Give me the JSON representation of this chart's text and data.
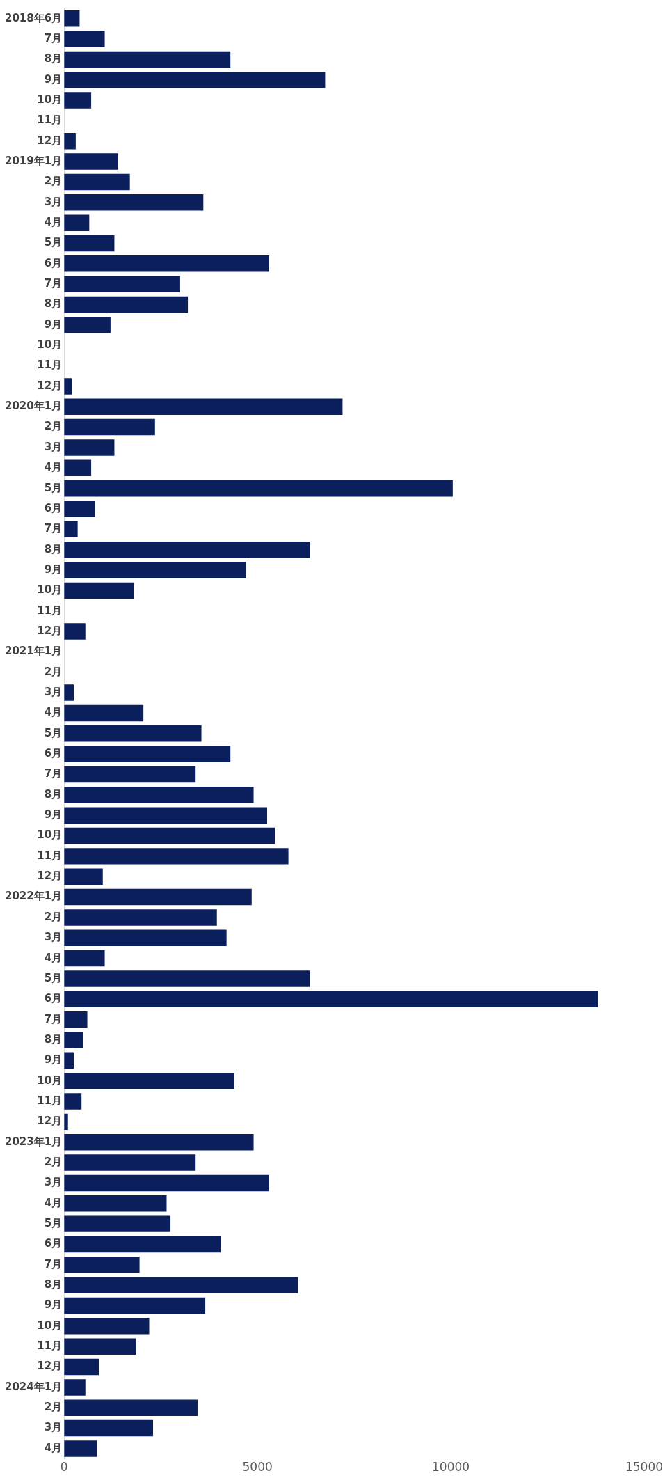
{
  "chart_data": {
    "type": "bar",
    "orientation": "horizontal",
    "categories": [
      "2018年6月",
      "7月",
      "8月",
      "9月",
      "10月",
      "11月",
      "12月",
      "2019年1月",
      "2月",
      "3月",
      "4月",
      "5月",
      "6月",
      "7月",
      "8月",
      "9月",
      "10月",
      "11月",
      "12月",
      "2020年1月",
      "2月",
      "3月",
      "4月",
      "5月",
      "6月",
      "7月",
      "8月",
      "9月",
      "10月",
      "11月",
      "12月",
      "2021年1月",
      "2月",
      "3月",
      "4月",
      "5月",
      "6月",
      "7月",
      "8月",
      "9月",
      "10月",
      "11月",
      "12月",
      "2022年1月",
      "2月",
      "3月",
      "4月",
      "5月",
      "6月",
      "7月",
      "8月",
      "9月",
      "10月",
      "11月",
      "12月",
      "2023年1月",
      "2月",
      "3月",
      "4月",
      "5月",
      "6月",
      "7月",
      "8月",
      "9月",
      "10月",
      "11月",
      "12月",
      "2024年1月",
      "2月",
      "3月",
      "4月"
    ],
    "values": [
      400,
      1050,
      4300,
      6750,
      700,
      null,
      300,
      1400,
      1700,
      3600,
      650,
      1300,
      5300,
      3000,
      3200,
      1200,
      null,
      null,
      200,
      7200,
      2350,
      1300,
      700,
      10050,
      800,
      350,
      6350,
      4700,
      1800,
      null,
      550,
      null,
      null,
      250,
      2050,
      3550,
      4300,
      3400,
      4900,
      5250,
      5450,
      5800,
      1000,
      4850,
      3950,
      4200,
      1050,
      6350,
      13800,
      600,
      500,
      250,
      4400,
      450,
      100,
      4900,
      3400,
      5300,
      2650,
      2750,
      4050,
      1950,
      6050,
      3650,
      2200,
      1850,
      900,
      550,
      3450,
      2300,
      850
    ],
    "color": "#0b1f5c",
    "xlim": [
      0,
      15000
    ],
    "xticks": [
      0,
      5000,
      10000,
      15000
    ],
    "grid": false,
    "legend": false
  }
}
